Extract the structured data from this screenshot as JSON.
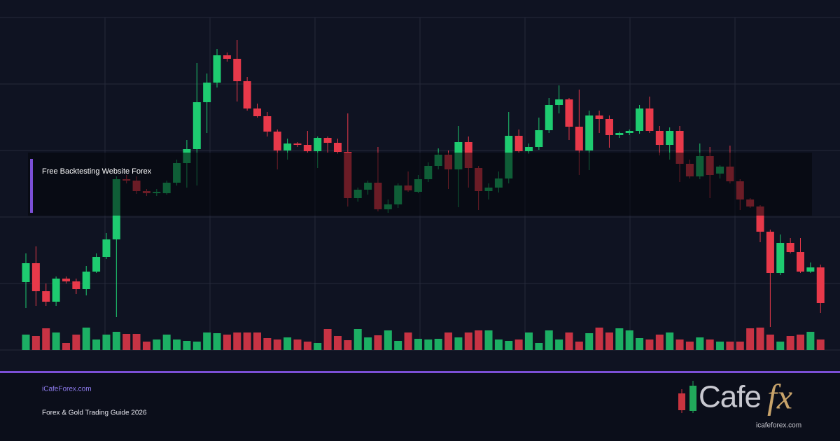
{
  "chart_data": {
    "type": "candlestick",
    "up_color": "#1ecb70",
    "down_color": "#e8394a",
    "ylim": [
      0,
      475
    ],
    "y2lim": [
      0,
      100
    ],
    "open": [
      97,
      124,
      84,
      69,
      102,
      98,
      87,
      112,
      133,
      158,
      244,
      242,
      227,
      224,
      224,
      239,
      267,
      287,
      354,
      382,
      421,
      416,
      384,
      345,
      334,
      312,
      285,
      295,
      293,
      284,
      303,
      296,
      283,
      217,
      229,
      239,
      201,
      208,
      235,
      226,
      244,
      263,
      279,
      258,
      297,
      260,
      227,
      232,
      245,
      306,
      284,
      290,
      314,
      350,
      358,
      319,
      285,
      335,
      330,
      307,
      310,
      313,
      345,
      313,
      293,
      313,
      266,
      248,
      277,
      252,
      262,
      241,
      215,
      205,
      169,
      110,
      153,
      140,
      112,
      118
    ],
    "high": [
      138,
      148,
      95,
      105,
      105,
      102,
      120,
      138,
      167,
      248,
      250,
      248,
      230,
      230,
      242,
      272,
      300,
      410,
      395,
      430,
      425,
      443,
      390,
      352,
      340,
      315,
      302,
      297,
      313,
      305,
      305,
      302,
      338,
      232,
      242,
      290,
      215,
      238,
      255,
      250,
      268,
      288,
      285,
      320,
      305,
      263,
      238,
      255,
      340,
      315,
      295,
      332,
      360,
      378,
      360,
      372,
      342,
      342,
      335,
      312,
      315,
      350,
      362,
      320,
      318,
      320,
      272,
      295,
      290,
      264,
      292,
      244,
      217,
      207,
      172,
      165,
      160,
      160,
      125,
      122
    ],
    "low": [
      60,
      63,
      63,
      63,
      95,
      80,
      78,
      110,
      130,
      47,
      238,
      223,
      220,
      220,
      222,
      235,
      232,
      235,
      310,
      375,
      412,
      355,
      342,
      332,
      305,
      258,
      272,
      290,
      282,
      260,
      282,
      280,
      205,
      212,
      222,
      198,
      196,
      203,
      226,
      224,
      240,
      258,
      230,
      204,
      232,
      200,
      215,
      225,
      238,
      282,
      280,
      286,
      310,
      338,
      300,
      250,
      257,
      310,
      289,
      303,
      307,
      309,
      310,
      278,
      272,
      240,
      245,
      244,
      217,
      245,
      238,
      200,
      203,
      154,
      33,
      107,
      138,
      110,
      110,
      53
    ],
    "close": [
      124,
      84,
      69,
      102,
      98,
      87,
      112,
      133,
      158,
      244,
      242,
      227,
      224,
      226,
      239,
      267,
      287,
      354,
      382,
      421,
      416,
      384,
      345,
      334,
      312,
      285,
      295,
      293,
      284,
      303,
      296,
      283,
      217,
      229,
      239,
      201,
      208,
      235,
      228,
      244,
      263,
      279,
      258,
      297,
      260,
      227,
      232,
      245,
      306,
      284,
      290,
      314,
      350,
      358,
      319,
      285,
      335,
      330,
      307,
      310,
      313,
      345,
      313,
      293,
      313,
      266,
      248,
      277,
      250,
      262,
      241,
      215,
      205,
      169,
      110,
      153,
      140,
      112,
      118,
      67
    ],
    "volume": [
      22,
      20,
      31,
      25,
      10,
      22,
      32,
      15,
      22,
      26,
      23,
      23,
      12,
      15,
      22,
      15,
      13,
      12,
      25,
      24,
      22,
      25,
      25,
      25,
      17,
      15,
      18,
      15,
      12,
      10,
      30,
      20,
      14,
      30,
      18,
      21,
      28,
      13,
      25,
      16,
      15,
      16,
      25,
      18,
      25,
      28,
      28,
      15,
      13,
      15,
      25,
      10,
      28,
      15,
      25,
      12,
      24,
      32,
      25,
      31,
      28,
      17,
      15,
      22,
      25,
      15,
      12,
      18,
      15,
      12,
      12,
      12,
      31,
      32,
      22,
      12,
      20,
      22,
      26,
      15
    ]
  },
  "banner": {
    "title": "Free Backtesting Website Forex"
  },
  "footer": {
    "site": "iCafeForex.com",
    "subtitle": "Forex & Gold Trading Guide 2026"
  },
  "logo": {
    "word": "Cafe",
    "accent": "fx",
    "url": "icafeforex.com"
  }
}
